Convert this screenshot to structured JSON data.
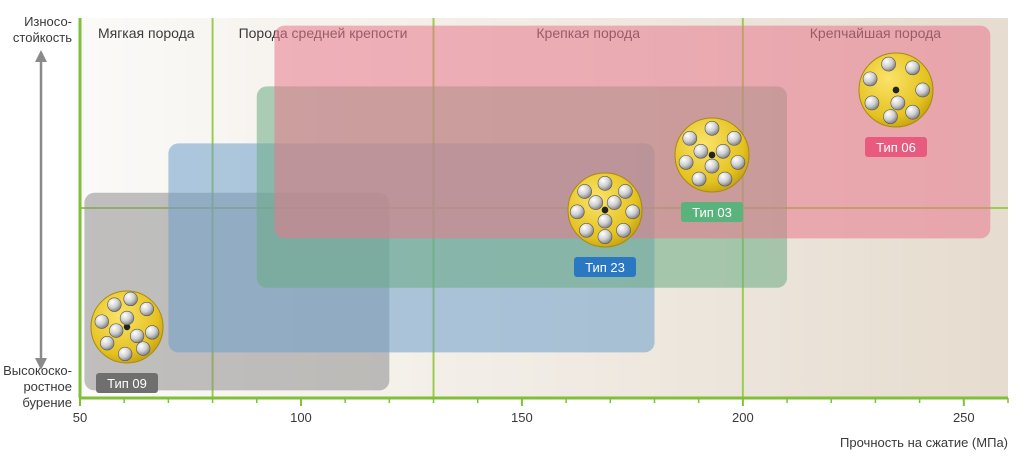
{
  "chart_data": {
    "type": "range",
    "xlabel": "Прочность на сжатие (МПа)",
    "xlim": [
      50,
      260
    ],
    "xticks": [
      50,
      100,
      150,
      200,
      250
    ],
    "zones": [
      {
        "label": "Мягкая порода",
        "from": 50,
        "to": 80
      },
      {
        "label": "Порода средней крепости",
        "from": 80,
        "to": 130
      },
      {
        "label": "Крепкая порода",
        "from": 130,
        "to": 200
      },
      {
        "label": "Крепчайшая порода",
        "from": 200,
        "to": 260
      }
    ],
    "y_axis": {
      "top_label": [
        "Износо-",
        "стойкость"
      ],
      "bottom_label": [
        "Высокоско-",
        "ростное",
        "бурение"
      ],
      "scale": [
        0,
        1
      ]
    },
    "ranges": [
      {
        "name": "Тип 09",
        "x": [
          51,
          120
        ],
        "y": [
          0.02,
          0.54
        ],
        "color": "#8e8e8e",
        "badge_color": "#6f6f6f"
      },
      {
        "name": "Тип 23",
        "x": [
          70,
          180
        ],
        "y": [
          0.12,
          0.67
        ],
        "color": "#6d9fcb",
        "badge_color": "#2b78c2"
      },
      {
        "name": "Тип 03",
        "x": [
          90,
          210
        ],
        "y": [
          0.29,
          0.82
        ],
        "color": "#6bab84",
        "badge_color": "#5ab27c"
      },
      {
        "name": "Тип 06",
        "x": [
          94,
          256
        ],
        "y": [
          0.42,
          0.98
        ],
        "color": "#e8788c",
        "badge_color": "#e85b7e"
      }
    ]
  },
  "colors": {
    "grid": "#9ccc4e",
    "axis": "#7fbf3a",
    "bg_start": "#fbfaf8",
    "bg_end": "#e6dccf"
  }
}
